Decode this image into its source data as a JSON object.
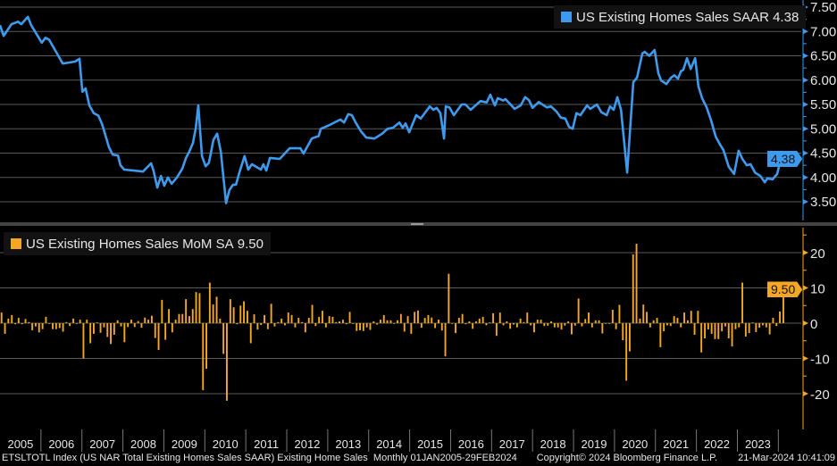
{
  "footer": {
    "description": "ETSLTOTL Index (US NAR Total Existing Homes Sales SAAR) Existing Home Sales  Monthly 01JAN2005-29FEB2024",
    "copyright": "Copyright© 2024 Bloomberg Finance L.P.",
    "timestamp": "21-Mar-2024 10:41:09"
  },
  "colors": {
    "background": "#000000",
    "line": "#3d9bef",
    "bars": "#f5a623",
    "grid": "#5a5a5a",
    "text": "#e6e6e6"
  },
  "chart_data": [
    {
      "type": "line",
      "title": "US Existing Homes Sales SAAR",
      "legend": {
        "label": "US Existing Homes Sales SAAR",
        "last_value": "4.38",
        "placement": "top-right"
      },
      "last_value_badge": "4.38",
      "ylim": [
        3.25,
        7.6
      ],
      "yticks": [
        "7.50",
        "7.00",
        "6.50",
        "6.00",
        "5.50",
        "5.00",
        "4.50",
        "4.00",
        "3.50"
      ],
      "ytick_values": [
        7.5,
        7.0,
        6.5,
        6.0,
        5.5,
        5.0,
        4.5,
        4.0,
        3.5
      ],
      "ylabel": "",
      "xlabel": "",
      "grid": true,
      "points": [
        [
          2005.0,
          7.13
        ],
        [
          2005.09,
          6.91
        ],
        [
          2005.28,
          7.15
        ],
        [
          2005.44,
          7.2
        ],
        [
          2005.52,
          7.15
        ],
        [
          2005.68,
          7.3
        ],
        [
          2005.76,
          7.13
        ],
        [
          2006.02,
          6.77
        ],
        [
          2006.11,
          6.87
        ],
        [
          2006.2,
          6.83
        ],
        [
          2006.37,
          6.58
        ],
        [
          2006.53,
          6.34
        ],
        [
          2006.68,
          6.36
        ],
        [
          2006.83,
          6.38
        ],
        [
          2006.94,
          6.44
        ],
        [
          2007.01,
          5.76
        ],
        [
          2007.09,
          5.83
        ],
        [
          2007.18,
          5.48
        ],
        [
          2007.29,
          5.32
        ],
        [
          2007.4,
          5.27
        ],
        [
          2007.49,
          5.1
        ],
        [
          2007.66,
          4.62
        ],
        [
          2007.75,
          4.47
        ],
        [
          2007.88,
          4.45
        ],
        [
          2007.94,
          4.25
        ],
        [
          2008.03,
          4.16
        ],
        [
          2008.27,
          4.14
        ],
        [
          2008.49,
          4.12
        ],
        [
          2008.69,
          4.29
        ],
        [
          2008.75,
          4.13
        ],
        [
          2008.84,
          3.79
        ],
        [
          2008.93,
          4.03
        ],
        [
          2009.01,
          3.83
        ],
        [
          2009.1,
          4.0
        ],
        [
          2009.19,
          3.87
        ],
        [
          2009.32,
          4.0
        ],
        [
          2009.45,
          4.18
        ],
        [
          2009.54,
          4.4
        ],
        [
          2009.62,
          4.53
        ],
        [
          2009.71,
          4.71
        ],
        [
          2009.78,
          5.02
        ],
        [
          2009.84,
          5.48
        ],
        [
          2009.93,
          4.44
        ],
        [
          2010.02,
          4.23
        ],
        [
          2010.1,
          4.3
        ],
        [
          2010.21,
          4.77
        ],
        [
          2010.3,
          4.9
        ],
        [
          2010.39,
          4.53
        ],
        [
          2010.52,
          3.47
        ],
        [
          2010.6,
          3.74
        ],
        [
          2010.69,
          3.85
        ],
        [
          2010.76,
          3.85
        ],
        [
          2010.84,
          4.09
        ],
        [
          2010.97,
          4.44
        ],
        [
          2011.06,
          4.16
        ],
        [
          2011.15,
          4.27
        ],
        [
          2011.37,
          4.16
        ],
        [
          2011.43,
          4.27
        ],
        [
          2011.5,
          4.14
        ],
        [
          2011.59,
          4.4
        ],
        [
          2011.83,
          4.38
        ],
        [
          2012.07,
          4.6
        ],
        [
          2012.33,
          4.6
        ],
        [
          2012.41,
          4.49
        ],
        [
          2012.61,
          4.8
        ],
        [
          2012.78,
          4.85
        ],
        [
          2012.83,
          5.0
        ],
        [
          2013.05,
          5.08
        ],
        [
          2013.31,
          5.19
        ],
        [
          2013.4,
          5.13
        ],
        [
          2013.5,
          5.3
        ],
        [
          2013.59,
          5.28
        ],
        [
          2013.68,
          5.13
        ],
        [
          2013.81,
          4.95
        ],
        [
          2013.94,
          4.82
        ],
        [
          2014.14,
          4.8
        ],
        [
          2014.33,
          4.9
        ],
        [
          2014.46,
          5.0
        ],
        [
          2014.59,
          5.02
        ],
        [
          2014.75,
          5.13
        ],
        [
          2014.83,
          5.02
        ],
        [
          2014.9,
          5.11
        ],
        [
          2014.99,
          4.93
        ],
        [
          2015.16,
          5.28
        ],
        [
          2015.27,
          5.21
        ],
        [
          2015.49,
          5.46
        ],
        [
          2015.58,
          5.39
        ],
        [
          2015.66,
          5.43
        ],
        [
          2015.75,
          5.32
        ],
        [
          2015.84,
          4.8
        ],
        [
          2015.88,
          5.46
        ],
        [
          2015.97,
          5.44
        ],
        [
          2016.08,
          5.28
        ],
        [
          2016.27,
          5.5
        ],
        [
          2016.36,
          5.5
        ],
        [
          2016.49,
          5.39
        ],
        [
          2016.73,
          5.57
        ],
        [
          2016.88,
          5.54
        ],
        [
          2016.97,
          5.7
        ],
        [
          2017.08,
          5.48
        ],
        [
          2017.15,
          5.63
        ],
        [
          2017.28,
          5.58
        ],
        [
          2017.34,
          5.61
        ],
        [
          2017.56,
          5.41
        ],
        [
          2017.71,
          5.48
        ],
        [
          2017.82,
          5.65
        ],
        [
          2017.91,
          5.59
        ],
        [
          2018.0,
          5.43
        ],
        [
          2018.15,
          5.55
        ],
        [
          2018.35,
          5.44
        ],
        [
          2018.45,
          5.46
        ],
        [
          2018.59,
          5.35
        ],
        [
          2018.69,
          5.23
        ],
        [
          2018.8,
          5.21
        ],
        [
          2018.89,
          5.04
        ],
        [
          2018.98,
          5.0
        ],
        [
          2019.07,
          5.32
        ],
        [
          2019.17,
          5.28
        ],
        [
          2019.33,
          5.48
        ],
        [
          2019.41,
          5.41
        ],
        [
          2019.57,
          5.5
        ],
        [
          2019.68,
          5.34
        ],
        [
          2019.81,
          5.28
        ],
        [
          2019.89,
          5.46
        ],
        [
          2019.98,
          5.39
        ],
        [
          2020.07,
          5.65
        ],
        [
          2020.16,
          5.39
        ],
        [
          2020.31,
          4.1
        ],
        [
          2020.46,
          5.96
        ],
        [
          2020.55,
          6.05
        ],
        [
          2020.68,
          6.55
        ],
        [
          2020.74,
          6.58
        ],
        [
          2020.85,
          6.5
        ],
        [
          2020.98,
          6.62
        ],
        [
          2021.07,
          6.14
        ],
        [
          2021.14,
          5.99
        ],
        [
          2021.27,
          5.92
        ],
        [
          2021.38,
          6.05
        ],
        [
          2021.46,
          6.1
        ],
        [
          2021.55,
          6.03
        ],
        [
          2021.62,
          6.18
        ],
        [
          2021.68,
          6.21
        ],
        [
          2021.77,
          6.45
        ],
        [
          2021.86,
          6.23
        ],
        [
          2021.97,
          6.45
        ],
        [
          2022.05,
          5.87
        ],
        [
          2022.14,
          5.63
        ],
        [
          2022.25,
          5.44
        ],
        [
          2022.36,
          5.17
        ],
        [
          2022.47,
          4.84
        ],
        [
          2022.58,
          4.67
        ],
        [
          2022.66,
          4.56
        ],
        [
          2022.79,
          4.22
        ],
        [
          2022.92,
          4.07
        ],
        [
          2023.03,
          4.55
        ],
        [
          2023.12,
          4.38
        ],
        [
          2023.23,
          4.25
        ],
        [
          2023.32,
          4.27
        ],
        [
          2023.43,
          4.1
        ],
        [
          2023.56,
          4.03
        ],
        [
          2023.67,
          3.9
        ],
        [
          2023.73,
          3.98
        ],
        [
          2023.86,
          3.96
        ],
        [
          2023.97,
          4.07
        ],
        [
          2024.06,
          4.38
        ]
      ]
    },
    {
      "type": "bar",
      "title": "US Existing Homes Sales MoM SA",
      "legend": {
        "label": "US Existing Homes Sales MoM SA",
        "last_value": "9.50",
        "placement": "top-left"
      },
      "last_value_badge": "9.50",
      "ylim": [
        -25,
        27
      ],
      "yticks": [
        "20",
        "10",
        "0",
        "-10",
        "-20"
      ],
      "ytick_values": [
        20,
        10,
        0,
        -10,
        -20
      ],
      "grid": true,
      "start_month": "2005-01",
      "end_month": "2024-02",
      "values": [
        3,
        -3,
        1.3,
        2.3,
        -0.3,
        1.5,
        -0.3,
        1.2,
        0.3,
        -2,
        -0.9,
        -2.6,
        -1.7,
        1.8,
        -0.2,
        -1.7,
        -1.7,
        -1.4,
        -2.4,
        0.3,
        -0.8,
        1.3,
        -0.2,
        1,
        -10,
        1,
        -5.7,
        -3,
        0.2,
        -2.7,
        -1.2,
        -3.9,
        -5.9,
        -3.3,
        0.8,
        -0.9,
        -5.4,
        -1.1,
        1,
        -1.1,
        0.6,
        -1.3,
        1.6,
        1,
        2.1,
        -4.2,
        -7.6,
        6.6,
        -4.7,
        4,
        -2.6,
        1,
        2.6,
        2.6,
        6.8,
        2,
        4,
        8.8,
        8.5,
        -19,
        -12.9,
        11.5,
        5.3,
        7.5,
        1.3,
        -8.7,
        -22,
        6.8,
        4.5,
        -0.3,
        5,
        6.2,
        3.5,
        -5.7,
        2.5,
        -1.8,
        -0.5,
        2.3,
        -1.7,
        5.5,
        -0.9,
        0.3,
        1.3,
        -0.6,
        3,
        2.3,
        -1.2,
        1.5,
        0.3,
        -2.6,
        1.5,
        5.2,
        -0.8,
        1.8,
        3.5,
        -1.2,
        2,
        1.8,
        0.3,
        0.5,
        1,
        -0.3,
        3.2,
        -0.2,
        -2.2,
        -2,
        -2.2,
        -1.2,
        -1.9,
        0.5,
        -0.4,
        1,
        2.3,
        0.8,
        0.8,
        -0.2,
        0.8,
        2.6,
        -2.4,
        2,
        -3,
        3.2,
        3.6,
        -1.3,
        1.5,
        2.3,
        1.6,
        -1.4,
        1,
        -2.1,
        -9.4,
        14,
        -0.2,
        -2.8,
        1.5,
        2.6,
        -0.3,
        0.5,
        -1.6,
        0.5,
        1.3,
        1.8,
        -0.6,
        0.2,
        2.8,
        -3.6,
        3,
        -0.6,
        0.5,
        -1.6,
        -0.4,
        -1.2,
        1.3,
        0.3,
        3,
        -0.6,
        -2.6,
        1,
        1,
        -0.8,
        -0.7,
        0.5,
        -1.2,
        -1.2,
        -1.8,
        -0.7,
        0.5,
        -3.2,
        -0.7,
        7,
        -0.9,
        1.2,
        3,
        -1.2,
        0.8,
        0.8,
        -2.9,
        -0.2,
        -0.2,
        3.8,
        -1.7,
        5.2,
        -4.8,
        -16.3,
        -8,
        19.5,
        22.5,
        1.3,
        5.3,
        3.2,
        -1.2,
        0.8,
        1.5,
        -6.8,
        -2.3,
        -0.6,
        -0.8,
        2,
        1.5,
        -1.2,
        3,
        0.8,
        3.5,
        -3.3,
        3.5,
        -8.3,
        -4.3,
        -1.8,
        -3,
        -4.5,
        -4.5,
        -2.3,
        -0.9,
        -4.3,
        -6.6,
        -1.7,
        -1.2,
        11.5,
        -3.8,
        -2.8,
        0.2,
        -2.5,
        -1.3,
        -0.6,
        -1.2,
        -3.2,
        1.5,
        -0.8,
        3.3,
        9.5
      ]
    }
  ],
  "x_axis": {
    "labels": [
      "2005",
      "2006",
      "2007",
      "2008",
      "2009",
      "2010",
      "2011",
      "2012",
      "2013",
      "2014",
      "2015",
      "2016",
      "2017",
      "2018",
      "2019",
      "2020",
      "2021",
      "2022",
      "2023"
    ],
    "start_year": 2005
  }
}
